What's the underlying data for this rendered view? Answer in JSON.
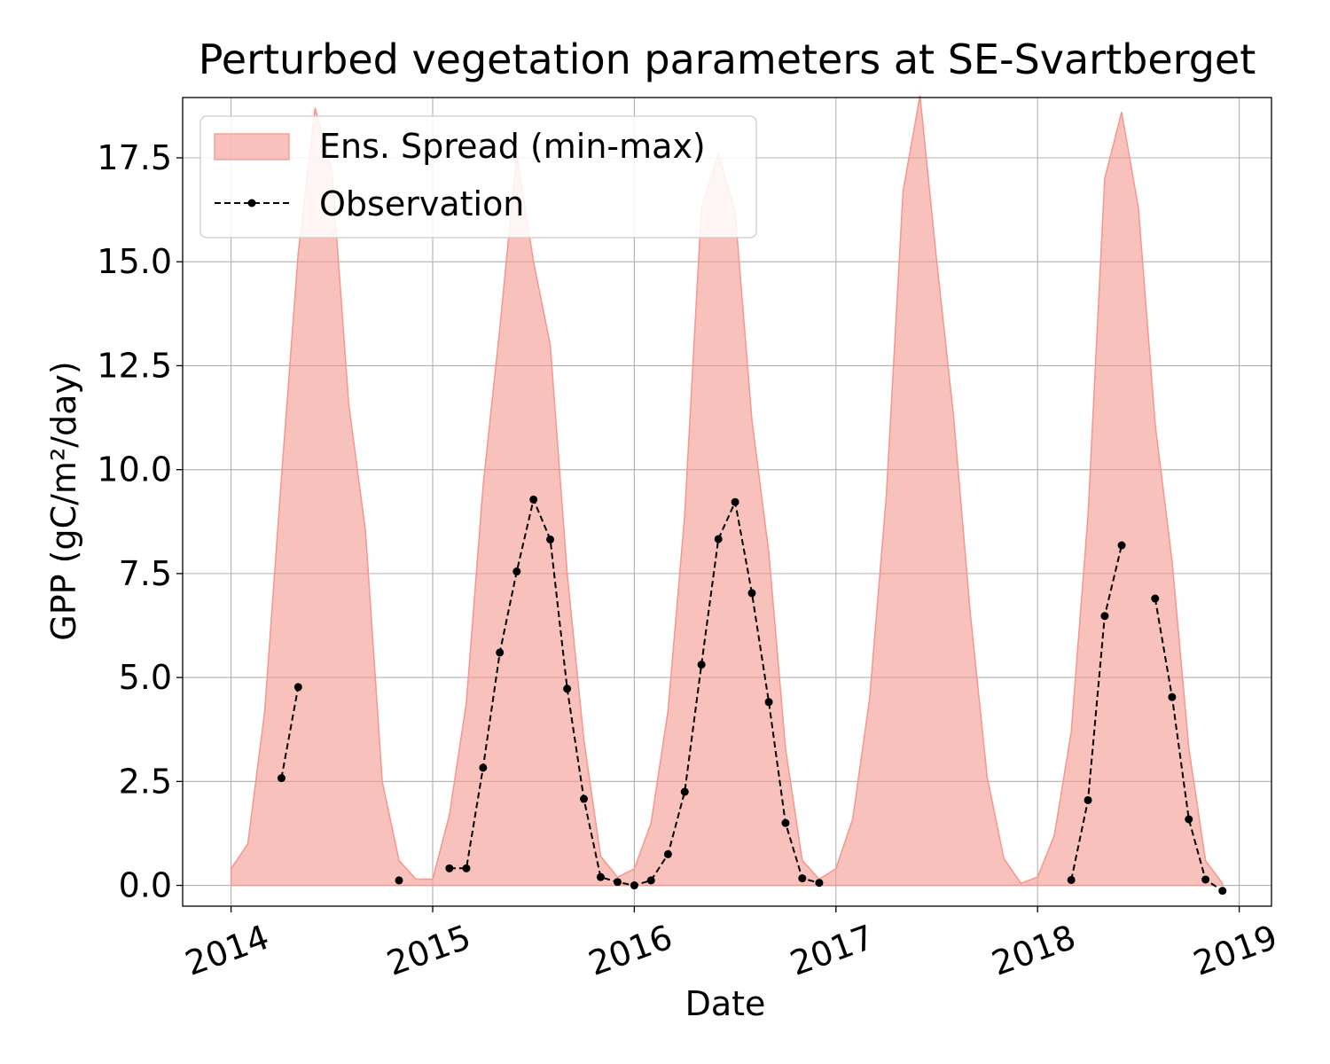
{
  "chart_data": {
    "type": "area",
    "title": "Perturbed vegetation parameters at SE-Svartberget",
    "xlabel": "Date",
    "ylabel": "GPP  (gC/m²/day)",
    "xlim": [
      2013.76,
      2019.16
    ],
    "ylim": [
      -0.5,
      18.95
    ],
    "xticks": [
      2014,
      2015,
      2016,
      2017,
      2018,
      2019
    ],
    "xtick_labels": [
      "2014",
      "2015",
      "2016",
      "2017",
      "2018",
      "2019"
    ],
    "yticks": [
      0.0,
      2.5,
      5.0,
      7.5,
      10.0,
      12.5,
      15.0,
      17.5
    ],
    "ytick_labels": [
      "0.0",
      "2.5",
      "5.0",
      "7.5",
      "10.0",
      "12.5",
      "15.0",
      "17.5"
    ],
    "grid": true,
    "legend_position": "upper-left",
    "series": [
      {
        "name": "Ens. Spread (min-max)",
        "kind": "band",
        "color": "#f4978e",
        "x": [
          2014.0,
          2014.083,
          2014.167,
          2014.25,
          2014.333,
          2014.417,
          2014.5,
          2014.583,
          2014.667,
          2014.75,
          2014.833,
          2014.917,
          2015.0,
          2015.083,
          2015.167,
          2015.25,
          2015.333,
          2015.417,
          2015.5,
          2015.583,
          2015.667,
          2015.75,
          2015.833,
          2015.917,
          2016.0,
          2016.083,
          2016.167,
          2016.25,
          2016.333,
          2016.417,
          2016.5,
          2016.583,
          2016.667,
          2016.75,
          2016.833,
          2016.917,
          2017.0,
          2017.083,
          2017.167,
          2017.25,
          2017.333,
          2017.417,
          2017.5,
          2017.583,
          2017.667,
          2017.75,
          2017.833,
          2017.917,
          2018.0,
          2018.083,
          2018.167,
          2018.25,
          2018.333,
          2018.417,
          2018.5,
          2018.583,
          2018.667,
          2018.75,
          2018.833,
          2018.917
        ],
        "min": [
          0,
          0,
          0,
          0,
          0,
          0,
          0,
          0,
          0,
          0,
          0,
          0,
          0,
          0,
          0,
          0,
          0,
          0,
          0,
          0,
          0,
          0,
          0,
          0,
          0,
          0,
          0,
          0,
          0,
          0,
          0,
          0,
          0,
          0,
          0,
          0,
          0,
          0,
          0,
          0,
          0,
          0,
          0,
          0,
          0,
          0,
          0,
          0,
          0,
          0,
          0,
          0,
          0,
          0,
          0,
          0,
          0,
          0,
          0,
          0
        ],
        "max": [
          0.4,
          1.0,
          4.2,
          9.8,
          15.2,
          18.7,
          17.2,
          11.6,
          8.5,
          2.5,
          0.6,
          0.15,
          0.15,
          1.7,
          4.4,
          9.6,
          13.4,
          17.6,
          15.0,
          13.0,
          7.5,
          3.5,
          0.7,
          0.2,
          0.4,
          1.5,
          4.2,
          8.9,
          16.3,
          17.6,
          16.2,
          11.2,
          8.0,
          3.3,
          0.6,
          0.15,
          0.4,
          1.6,
          4.5,
          9.4,
          16.7,
          19.0,
          15.0,
          11.3,
          6.5,
          2.6,
          0.65,
          0.05,
          0.2,
          1.2,
          3.7,
          8.9,
          17.0,
          18.6,
          16.3,
          11.1,
          7.8,
          3.3,
          0.6,
          0.05
        ]
      },
      {
        "name": "Observation",
        "kind": "line",
        "color": "#000000",
        "segments": [
          {
            "x": [
              2014.25,
              2014.333
            ],
            "y": [
              2.58,
              4.77
            ]
          },
          {
            "x": [
              2014.833
            ],
            "y": [
              0.12
            ]
          },
          {
            "x": [
              2015.083,
              2015.167,
              2015.25,
              2015.333,
              2015.417,
              2015.5,
              2015.583,
              2015.667,
              2015.75,
              2015.833,
              2015.917,
              2016.0,
              2016.083,
              2016.167,
              2016.25,
              2016.333,
              2016.417,
              2016.5,
              2016.583,
              2016.667,
              2016.75,
              2016.833,
              2016.917
            ],
            "y": [
              0.41,
              0.41,
              2.83,
              5.6,
              7.55,
              9.28,
              8.32,
              4.73,
              2.08,
              0.2,
              0.08,
              0.0,
              0.12,
              0.75,
              2.25,
              5.31,
              8.33,
              9.22,
              7.03,
              4.41,
              1.5,
              0.17,
              0.06
            ]
          },
          {
            "x": [
              2018.167,
              2018.25,
              2018.333,
              2018.417
            ],
            "y": [
              0.13,
              2.05,
              6.48,
              8.18
            ]
          },
          {
            "x": [
              2018.583,
              2018.667,
              2018.75,
              2018.833,
              2018.917
            ],
            "y": [
              6.9,
              4.53,
              1.59,
              0.14,
              -0.13
            ]
          }
        ]
      }
    ]
  }
}
